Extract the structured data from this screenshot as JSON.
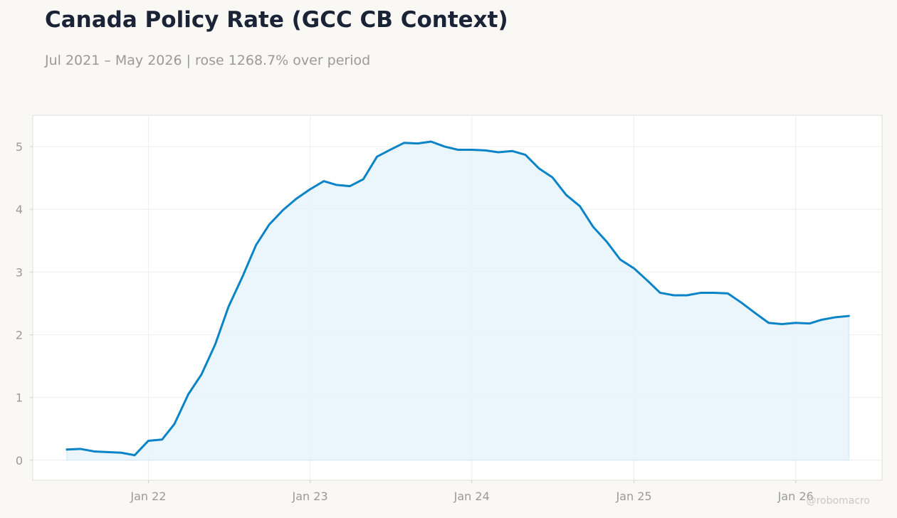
{
  "title": "Canada Policy Rate (GCC CB Context)",
  "subtitle": "Jul 2021 – May 2026 | rose 1268.7% over period",
  "watermark": "@robomacro",
  "colors": {
    "line": "#0a84c6",
    "fill": "#e6f2fb",
    "grid": "#eeeeee",
    "axis_text": "#9a9a9a",
    "plot_bg": "#ffffff",
    "page_bg": "#f9f8f5"
  },
  "chart_data": {
    "type": "area",
    "title": "Canada Policy Rate (GCC CB Context)",
    "xlabel": "",
    "ylabel": "",
    "xlim": [
      "2021-04-15",
      "2026-07-15"
    ],
    "ylim": [
      -0.32,
      5.5
    ],
    "grid": true,
    "legend": "none",
    "x_ticks": [
      {
        "label": "Jan 22",
        "date": "2022-01-01"
      },
      {
        "label": "Jan 23",
        "date": "2023-01-01"
      },
      {
        "label": "Jan 24",
        "date": "2024-01-01"
      },
      {
        "label": "Jan 25",
        "date": "2025-01-01"
      },
      {
        "label": "Jan 26",
        "date": "2026-01-01"
      }
    ],
    "y_ticks": [
      0,
      1,
      2,
      3,
      4,
      5
    ],
    "series": [
      {
        "x": [
          "2021-07-01",
          "2021-08-01",
          "2021-09-01",
          "2021-10-01",
          "2021-11-01",
          "2021-12-01",
          "2022-01-01",
          "2022-02-01",
          "2022-03-01",
          "2022-04-01",
          "2022-05-01",
          "2022-06-01",
          "2022-07-01",
          "2022-08-01",
          "2022-09-01",
          "2022-10-01",
          "2022-11-01",
          "2022-12-01",
          "2023-01-01",
          "2023-02-01",
          "2023-03-01",
          "2023-04-01",
          "2023-05-01",
          "2023-06-01",
          "2023-07-01",
          "2023-08-01",
          "2023-09-01",
          "2023-10-01",
          "2023-11-01",
          "2023-12-01",
          "2024-01-01",
          "2024-02-01",
          "2024-03-01",
          "2024-04-01",
          "2024-05-01",
          "2024-06-01",
          "2024-07-01",
          "2024-08-01",
          "2024-09-01",
          "2024-10-01",
          "2024-11-01",
          "2024-12-01",
          "2025-01-01",
          "2025-02-01",
          "2025-03-01",
          "2025-04-01",
          "2025-05-01",
          "2025-06-01",
          "2025-07-01",
          "2025-08-01",
          "2025-09-01",
          "2025-10-01",
          "2025-11-01",
          "2025-12-01",
          "2026-01-01",
          "2026-02-01",
          "2026-03-01",
          "2026-04-01",
          "2026-05-01"
        ],
        "values": [
          0.17,
          0.18,
          0.14,
          0.13,
          0.12,
          0.08,
          0.31,
          0.33,
          0.58,
          1.05,
          1.37,
          1.85,
          2.45,
          2.92,
          3.43,
          3.76,
          3.99,
          4.17,
          4.32,
          4.45,
          4.39,
          4.37,
          4.48,
          4.84,
          4.95,
          5.06,
          5.05,
          5.08,
          5.0,
          4.95,
          4.95,
          4.94,
          4.91,
          4.93,
          4.87,
          4.65,
          4.51,
          4.23,
          4.05,
          3.72,
          3.48,
          3.2,
          3.06,
          2.86,
          2.67,
          2.63,
          2.63,
          2.67,
          2.67,
          2.66,
          2.51,
          2.35,
          2.19,
          2.17,
          2.19,
          2.18,
          2.24,
          2.28,
          2.3
        ]
      }
    ]
  }
}
